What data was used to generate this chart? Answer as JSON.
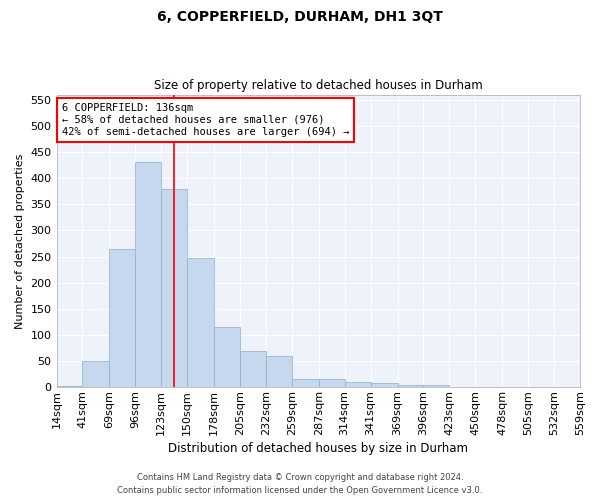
{
  "title": "6, COPPERFIELD, DURHAM, DH1 3QT",
  "subtitle": "Size of property relative to detached houses in Durham",
  "xlabel": "Distribution of detached houses by size in Durham",
  "ylabel": "Number of detached properties",
  "bar_color": "#c5d8ed",
  "bar_edge_color": "#8ab0cc",
  "bar_heights": [
    2,
    50,
    265,
    430,
    380,
    248,
    115,
    70,
    60,
    15,
    15,
    9,
    8,
    5,
    4,
    1,
    0,
    1,
    0,
    0
  ],
  "bin_edges": [
    14,
    41,
    69,
    96,
    123,
    150,
    178,
    205,
    232,
    259,
    287,
    314,
    341,
    369,
    396,
    423,
    450,
    478,
    505,
    532,
    559
  ],
  "bin_labels": [
    "14sqm",
    "41sqm",
    "69sqm",
    "96sqm",
    "123sqm",
    "150sqm",
    "178sqm",
    "205sqm",
    "232sqm",
    "259sqm",
    "287sqm",
    "314sqm",
    "341sqm",
    "369sqm",
    "396sqm",
    "423sqm",
    "450sqm",
    "478sqm",
    "505sqm",
    "532sqm",
    "559sqm"
  ],
  "vline_x": 136,
  "vline_color": "red",
  "annotation_text": "6 COPPERFIELD: 136sqm\n← 58% of detached houses are smaller (976)\n42% of semi-detached houses are larger (694) →",
  "annotation_box_color": "white",
  "annotation_box_edge": "red",
  "ylim": [
    0,
    560
  ],
  "yticks": [
    0,
    50,
    100,
    150,
    200,
    250,
    300,
    350,
    400,
    450,
    500,
    550
  ],
  "footer1": "Contains HM Land Registry data © Crown copyright and database right 2024.",
  "footer2": "Contains public sector information licensed under the Open Government Licence v3.0.",
  "bg_color": "#eef2fb",
  "grid_color": "#ffffff",
  "plot_bg_color": "#eef2fb"
}
